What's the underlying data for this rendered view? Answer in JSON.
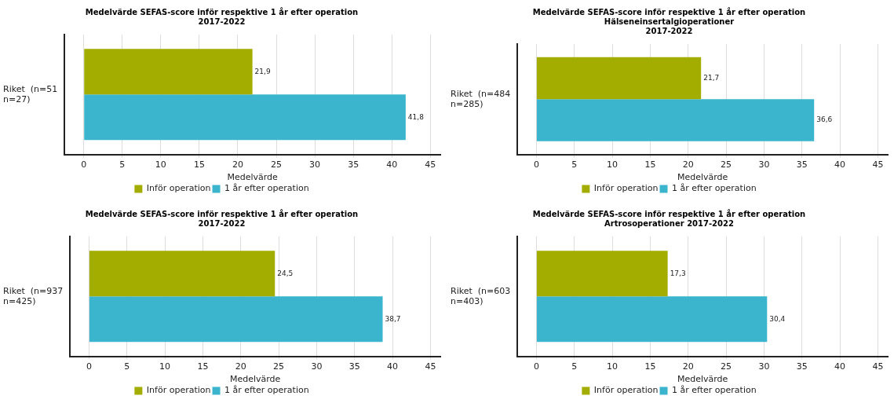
{
  "chart_data": [
    {
      "type": "bar",
      "orientation": "horizontal",
      "title": "Medelvärde SEFAS-score inför respektive 1 år efter operation\n2017-2022",
      "xlabel": "Medelvärde",
      "categories": [
        "Riket  (n=51\nn=27)"
      ],
      "series": [
        {
          "name": "Inför operation",
          "color": "#a3ad00",
          "values": [
            21.9
          ],
          "value_labels": [
            "21,9"
          ]
        },
        {
          "name": "1 år efter operation",
          "color": "#3bb4cd",
          "values": [
            41.8
          ],
          "value_labels": [
            "41,8"
          ]
        }
      ],
      "xlim": [
        -2.5,
        46.3
      ],
      "xticks": [
        0,
        5,
        10,
        15,
        20,
        25,
        30,
        35,
        40,
        45
      ],
      "grid": "x",
      "legend": "bottom"
    },
    {
      "type": "bar",
      "orientation": "horizontal",
      "title": "Medelvärde SEFAS-score inför respektive 1 år efter operation\nHälseneinsertalgioperationer\n2017-2022",
      "xlabel": "Medelvärde",
      "categories": [
        "Riket  (n=484\nn=285)"
      ],
      "series": [
        {
          "name": "Inför operation",
          "color": "#a3ad00",
          "values": [
            21.7
          ],
          "value_labels": [
            "21,7"
          ]
        },
        {
          "name": "1 år efter operation",
          "color": "#3bb4cd",
          "values": [
            36.6
          ],
          "value_labels": [
            "36,6"
          ]
        }
      ],
      "xlim": [
        -2.5,
        46.3
      ],
      "xticks": [
        0,
        5,
        10,
        15,
        20,
        25,
        30,
        35,
        40,
        45
      ],
      "grid": "x",
      "legend": "bottom"
    },
    {
      "type": "bar",
      "orientation": "horizontal",
      "title": "Medelvärde SEFAS-score inför respektive 1 år efter operation\n2017-2022",
      "xlabel": "Medelvärde",
      "categories": [
        "Riket  (n=937\nn=425)"
      ],
      "series": [
        {
          "name": "Inför operation",
          "color": "#a3ad00",
          "values": [
            24.5
          ],
          "value_labels": [
            "24,5"
          ]
        },
        {
          "name": "1 år efter operation",
          "color": "#3bb4cd",
          "values": [
            38.7
          ],
          "value_labels": [
            "38,7"
          ]
        }
      ],
      "xlim": [
        -2.5,
        46.3
      ],
      "xticks": [
        0,
        5,
        10,
        15,
        20,
        25,
        30,
        35,
        40,
        45
      ],
      "grid": "x",
      "legend": "bottom"
    },
    {
      "type": "bar",
      "orientation": "horizontal",
      "title": "Medelvärde SEFAS-score inför respektive 1 år efter operation\nArtrosoperationer 2017-2022",
      "xlabel": "Medelvärde",
      "categories": [
        "Riket  (n=603\nn=403)"
      ],
      "series": [
        {
          "name": "Inför operation",
          "color": "#a3ad00",
          "values": [
            17.3
          ],
          "value_labels": [
            "17,3"
          ]
        },
        {
          "name": "1 år efter operation",
          "color": "#3bb4cd",
          "values": [
            30.4
          ],
          "value_labels": [
            "30,4"
          ]
        }
      ],
      "xlim": [
        -2.5,
        46.3
      ],
      "xticks": [
        0,
        5,
        10,
        15,
        20,
        25,
        30,
        35,
        40,
        45
      ],
      "grid": "x",
      "legend": "bottom"
    }
  ]
}
